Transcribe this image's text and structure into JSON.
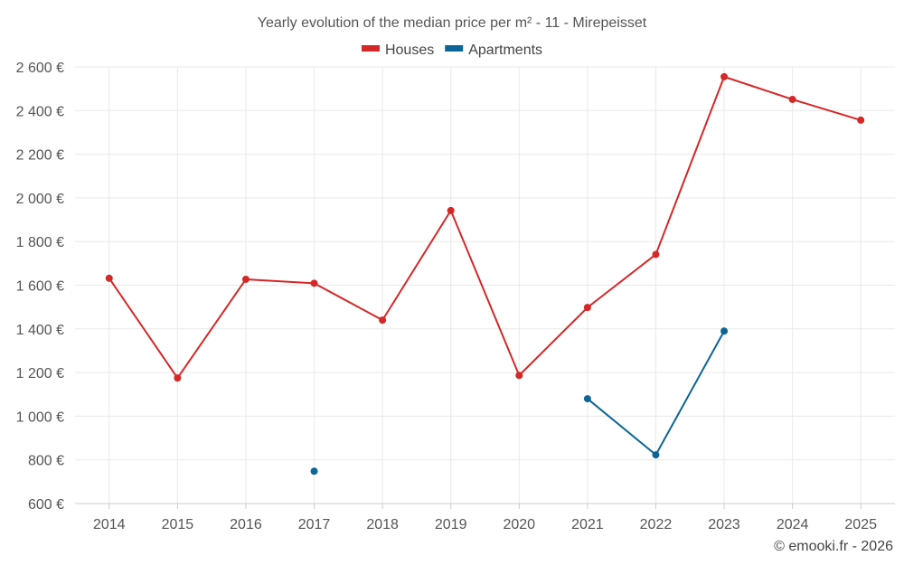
{
  "chart_data": {
    "type": "line",
    "title": "Yearly evolution of the median price per m² - 11 - Mirepeisset",
    "categories": [
      "2014",
      "2015",
      "2016",
      "2017",
      "2018",
      "2019",
      "2020",
      "2021",
      "2022",
      "2023",
      "2024",
      "2025"
    ],
    "series": [
      {
        "name": "Houses",
        "color": "#d62728",
        "values": [
          1632,
          1175,
          1627,
          1609,
          1440,
          1942,
          1187,
          1498,
          1741,
          2555,
          2451,
          2356
        ]
      },
      {
        "name": "Apartments",
        "color": "#0b6596",
        "values": [
          null,
          null,
          null,
          748,
          null,
          null,
          null,
          1080,
          823,
          1390,
          null,
          null
        ]
      }
    ],
    "ylim": [
      600,
      2600
    ],
    "yticks": [
      600,
      800,
      1000,
      1200,
      1400,
      1600,
      1800,
      2000,
      2200,
      2400,
      2600
    ],
    "ytick_labels": [
      "600 €",
      "800 €",
      "1 000 €",
      "1 200 €",
      "1 400 €",
      "1 600 €",
      "1 800 €",
      "2 000 €",
      "2 200 €",
      "2 400 €",
      "2 600 €"
    ],
    "grid": true,
    "legend": "top-center"
  },
  "credit": "© emooki.fr - 2026"
}
